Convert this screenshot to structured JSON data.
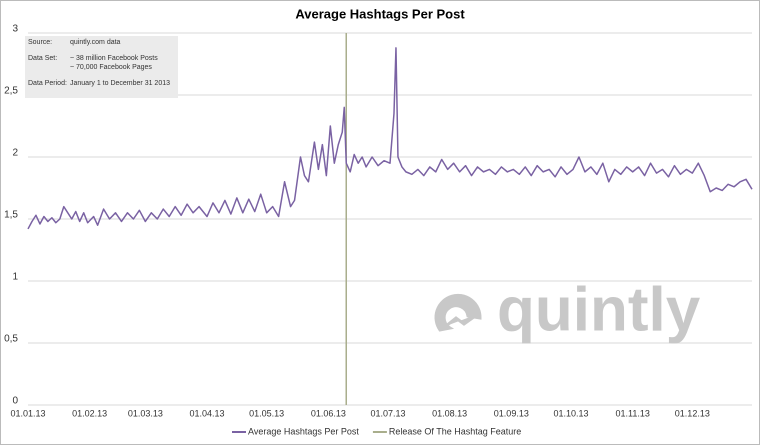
{
  "chart_data": {
    "type": "line",
    "title": "Average Hashtags Per Post",
    "info": [
      {
        "label": "Source:",
        "lines": [
          "quintly.com data"
        ]
      },
      {
        "label": "Data Set:",
        "lines": [
          "~ 38 million Facebook Posts",
          "~ 70,000 Facebook Pages"
        ]
      },
      {
        "label": "Data Period:",
        "lines": [
          "January 1 to December 31 2013"
        ]
      }
    ],
    "watermark": "quintly",
    "x": [
      "01.01.13",
      "03.01.13",
      "05.01.13",
      "07.01.13",
      "09.01.13",
      "11.01.13",
      "13.01.13",
      "15.01.13",
      "17.01.13",
      "19.01.13",
      "21.01.13",
      "23.01.13",
      "25.01.13",
      "27.01.13",
      "29.01.13",
      "31.01.13",
      "03.02.13",
      "05.02.13",
      "08.02.13",
      "11.02.13",
      "14.02.13",
      "17.02.13",
      "20.02.13",
      "23.02.13",
      "26.02.13",
      "01.03.13",
      "04.03.13",
      "07.03.13",
      "10.03.13",
      "13.03.13",
      "16.03.13",
      "19.03.13",
      "22.03.13",
      "25.03.13",
      "28.03.13",
      "01.04.13",
      "04.04.13",
      "07.04.13",
      "10.04.13",
      "13.04.13",
      "16.04.13",
      "19.04.13",
      "22.04.13",
      "25.04.13",
      "28.04.13",
      "01.05.13",
      "04.05.13",
      "07.05.13",
      "10.05.13",
      "13.05.13",
      "15.05.13",
      "18.05.13",
      "20.05.13",
      "22.05.13",
      "25.05.13",
      "27.05.13",
      "29.05.13",
      "31.05.13",
      "02.06.13",
      "04.06.13",
      "06.06.13",
      "08.06.13",
      "09.06.13",
      "10.06.13",
      "12.06.13",
      "14.06.13",
      "16.06.13",
      "18.06.13",
      "20.06.13",
      "23.06.13",
      "26.06.13",
      "29.06.13",
      "02.07.13",
      "04.07.13",
      "05.07.13",
      "06.07.13",
      "08.07.13",
      "10.07.13",
      "13.07.13",
      "16.07.13",
      "19.07.13",
      "22.07.13",
      "25.07.13",
      "28.07.13",
      "31.07.13",
      "03.08.13",
      "06.08.13",
      "09.08.13",
      "12.08.13",
      "15.08.13",
      "18.08.13",
      "21.08.13",
      "24.08.13",
      "27.08.13",
      "30.08.13",
      "02.09.13",
      "05.09.13",
      "08.09.13",
      "11.09.13",
      "14.09.13",
      "17.09.13",
      "20.09.13",
      "23.09.13",
      "26.09.13",
      "29.09.13",
      "02.10.13",
      "05.10.13",
      "08.10.13",
      "11.10.13",
      "14.10.13",
      "17.10.13",
      "20.10.13",
      "23.10.13",
      "26.10.13",
      "29.10.13",
      "01.11.13",
      "04.11.13",
      "07.11.13",
      "10.11.13",
      "13.11.13",
      "16.11.13",
      "19.11.13",
      "22.11.13",
      "25.11.13",
      "28.11.13",
      "01.12.13",
      "04.12.13",
      "07.12.13",
      "10.12.13",
      "13.12.13",
      "16.12.13",
      "19.12.13",
      "22.12.13",
      "25.12.13",
      "28.12.13",
      "31.12.13"
    ],
    "series": [
      {
        "name": "Average Hashtags Per Post",
        "color": "#7a62a3",
        "values": [
          1.42,
          1.48,
          1.53,
          1.46,
          1.52,
          1.48,
          1.51,
          1.47,
          1.5,
          1.6,
          1.55,
          1.5,
          1.56,
          1.48,
          1.55,
          1.47,
          1.52,
          1.45,
          1.58,
          1.5,
          1.55,
          1.48,
          1.55,
          1.5,
          1.57,
          1.48,
          1.55,
          1.5,
          1.58,
          1.52,
          1.6,
          1.53,
          1.62,
          1.55,
          1.6,
          1.52,
          1.63,
          1.55,
          1.65,
          1.54,
          1.67,
          1.55,
          1.66,
          1.56,
          1.7,
          1.55,
          1.6,
          1.52,
          1.8,
          1.6,
          1.65,
          2.0,
          1.85,
          1.8,
          2.12,
          1.9,
          2.1,
          1.85,
          2.25,
          1.95,
          2.1,
          2.2,
          2.4,
          1.95,
          1.88,
          2.02,
          1.95,
          2.0,
          1.92,
          2.0,
          1.93,
          1.97,
          1.95,
          2.35,
          2.88,
          2.0,
          1.92,
          1.88,
          1.86,
          1.9,
          1.85,
          1.92,
          1.88,
          1.98,
          1.9,
          1.95,
          1.88,
          1.93,
          1.85,
          1.92,
          1.88,
          1.9,
          1.86,
          1.92,
          1.88,
          1.9,
          1.86,
          1.92,
          1.85,
          1.93,
          1.88,
          1.9,
          1.84,
          1.92,
          1.86,
          1.9,
          2.0,
          1.88,
          1.92,
          1.86,
          1.95,
          1.8,
          1.9,
          1.86,
          1.92,
          1.88,
          1.92,
          1.85,
          1.95,
          1.87,
          1.9,
          1.84,
          1.93,
          1.86,
          1.9,
          1.87,
          1.95,
          1.85,
          1.72,
          1.75,
          1.73,
          1.78,
          1.76,
          1.8,
          1.82,
          1.74
        ]
      }
    ],
    "events": [
      {
        "name": "Release Of The Hashtag Feature",
        "x": "10.06.13",
        "color": "#a9ae8c"
      }
    ],
    "ylim": [
      0,
      3
    ],
    "yticks": [
      0,
      {
        "value": 0.5,
        "label": "0,5"
      },
      1,
      {
        "value": 1.5,
        "label": "1,5"
      },
      2,
      {
        "value": 2.5,
        "label": "2,5"
      },
      3
    ],
    "xticks": [
      "01.01.13",
      "01.02.13",
      "01.03.13",
      "01.04.13",
      "01.05.13",
      "01.06.13",
      "01.07.13",
      "01.08.13",
      "01.09.13",
      "01.10.13",
      "01.11.13",
      "01.12.13"
    ],
    "grid": true
  }
}
